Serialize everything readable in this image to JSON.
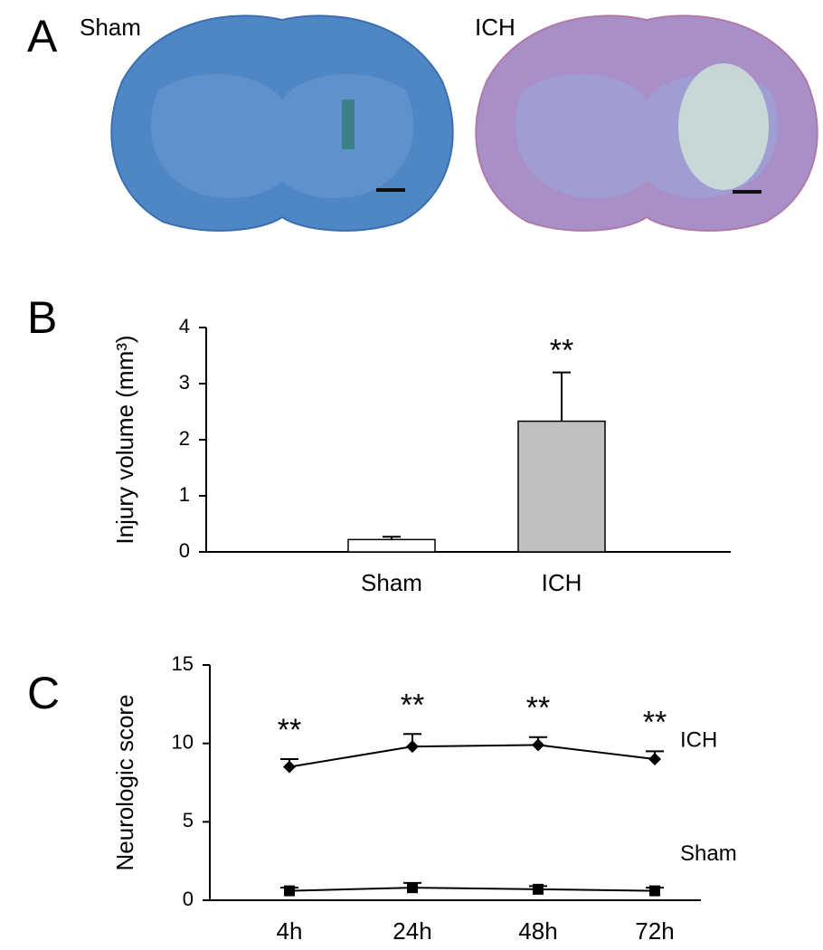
{
  "panel_a": {
    "label": "A",
    "image_labels": [
      "Sham",
      "ICH"
    ]
  },
  "chart_data": [
    {
      "type": "bar",
      "panel_label": "B",
      "y_label": "Injury volume (mm³)",
      "categories": [
        "Sham",
        "ICH"
      ],
      "values": [
        0.22,
        2.33
      ],
      "errors": [
        0.05,
        0.87
      ],
      "colors": [
        "#ffffff",
        "#c0c0c0"
      ],
      "significance": [
        null,
        "**"
      ],
      "ylim": [
        0,
        4
      ],
      "yticks": [
        0,
        1,
        2,
        3,
        4
      ]
    },
    {
      "type": "line",
      "panel_label": "C",
      "y_label": "Neurologic score",
      "categories": [
        "4h",
        "24h",
        "48h",
        "72h"
      ],
      "series": [
        {
          "name": "ICH",
          "color": "#000000",
          "marker": "diamond",
          "values": [
            8.5,
            9.8,
            9.9,
            9.0
          ],
          "errors": [
            0.5,
            0.8,
            0.5,
            0.5
          ]
        },
        {
          "name": "Sham",
          "color": "#000000",
          "marker": "square",
          "values": [
            0.6,
            0.8,
            0.7,
            0.6
          ],
          "errors": [
            0.2,
            0.3,
            0.2,
            0.2
          ]
        }
      ],
      "significance": [
        "**",
        "**",
        "**",
        "**"
      ],
      "ylim": [
        0,
        15
      ],
      "yticks": [
        0,
        5,
        10,
        15
      ]
    }
  ]
}
